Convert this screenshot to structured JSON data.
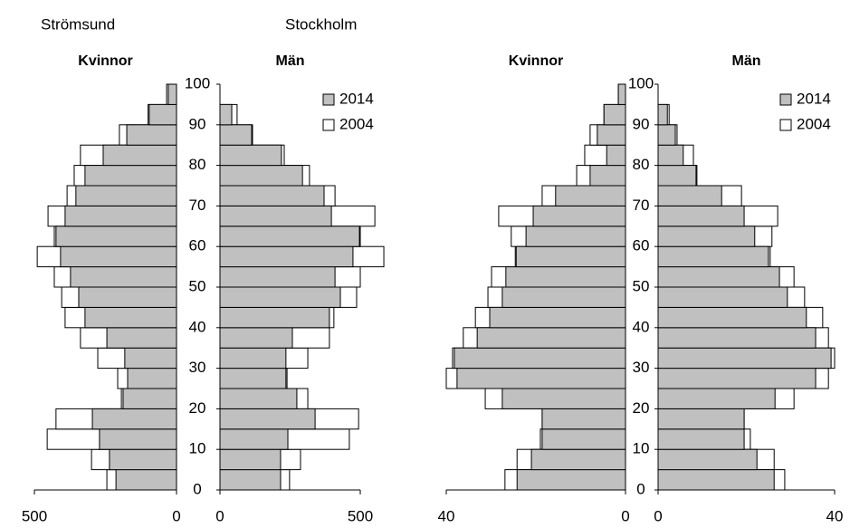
{
  "chart_data": [
    {
      "type": "pyramid",
      "title": "Strömsund",
      "ylim": [
        0,
        100
      ],
      "yticks": [
        0,
        10,
        20,
        30,
        40,
        50,
        60,
        70,
        80,
        90,
        100
      ],
      "panels": [
        {
          "title": "Kvinnor",
          "xlim": [
            500,
            0
          ],
          "xticks": [
            500,
            0
          ]
        },
        {
          "title": "Män",
          "xlim": [
            0,
            500
          ],
          "xticks": [
            0,
            500
          ]
        }
      ],
      "series": [
        {
          "name": "2014",
          "color": "#c0c0c0",
          "values": [
            [
              213,
              236,
              271,
              296,
              188,
              172,
              182,
              245,
              322,
              344,
              373,
              408,
              424,
              392,
              354,
              322,
              258,
              175,
              96,
              29
            ],
            [
              216,
              216,
              242,
              339,
              274,
              235,
              235,
              258,
              390,
              429,
              410,
              474,
              497,
              397,
              371,
              294,
              219,
              113,
              42,
              0
            ]
          ]
        },
        {
          "name": "2004",
          "color": "#ffffff",
          "values": [
            [
              245,
              299,
              455,
              424,
              194,
              207,
              277,
              338,
              392,
              404,
              430,
              490,
              430,
              452,
              385,
              360,
              338,
              201,
              100,
              35
            ],
            [
              248,
              287,
              461,
              494,
              313,
              239,
              313,
              390,
              406,
              487,
              500,
              584,
              500,
              552,
              410,
              319,
              229,
              116,
              61,
              0
            ]
          ]
        }
      ]
    },
    {
      "type": "pyramid",
      "title": "Stockholm",
      "ylim": [
        0,
        100
      ],
      "yticks": [
        0,
        10,
        20,
        30,
        40,
        50,
        60,
        70,
        80,
        90,
        100
      ],
      "panels": [
        {
          "title": "Kvinnor",
          "xlim": [
            40,
            0
          ],
          "xticks": [
            40,
            0
          ]
        },
        {
          "title": "Män",
          "xlim": [
            0,
            40
          ],
          "xticks": [
            0,
            40
          ]
        }
      ],
      "series": [
        {
          "name": "2014",
          "color": "#c0c0c0",
          "values": [
            [
              24.2,
              21.0,
              18.6,
              18.6,
              27.5,
              37.6,
              38.2,
              33.1,
              30.3,
              27.5,
              26.7,
              24.4,
              22.2,
              20.6,
              15.6,
              7.9,
              4.2,
              6.3,
              4.8,
              1.6
            ],
            [
              26.3,
              22.4,
              19.5,
              19.5,
              26.5,
              35.7,
              39.2,
              35.7,
              33.6,
              29.3,
              27.5,
              25.0,
              21.9,
              19.5,
              14.4,
              8.6,
              5.7,
              3.9,
              2.1,
              0
            ]
          ]
        },
        {
          "name": "2004",
          "color": "#ffffff",
          "values": [
            [
              26.9,
              24.2,
              19.0,
              18.6,
              31.3,
              40.0,
              38.6,
              36.2,
              33.5,
              30.7,
              29.9,
              24.6,
              25.5,
              28.3,
              18.6,
              10.9,
              9.1,
              7.9,
              4.8,
              1.6
            ],
            [
              28.7,
              26.3,
              20.9,
              19.5,
              30.8,
              38.6,
              40.0,
              38.6,
              37.3,
              33.2,
              30.8,
              25.4,
              25.8,
              27.1,
              18.9,
              8.8,
              8.0,
              4.3,
              2.5,
              0
            ]
          ]
        }
      ]
    }
  ]
}
